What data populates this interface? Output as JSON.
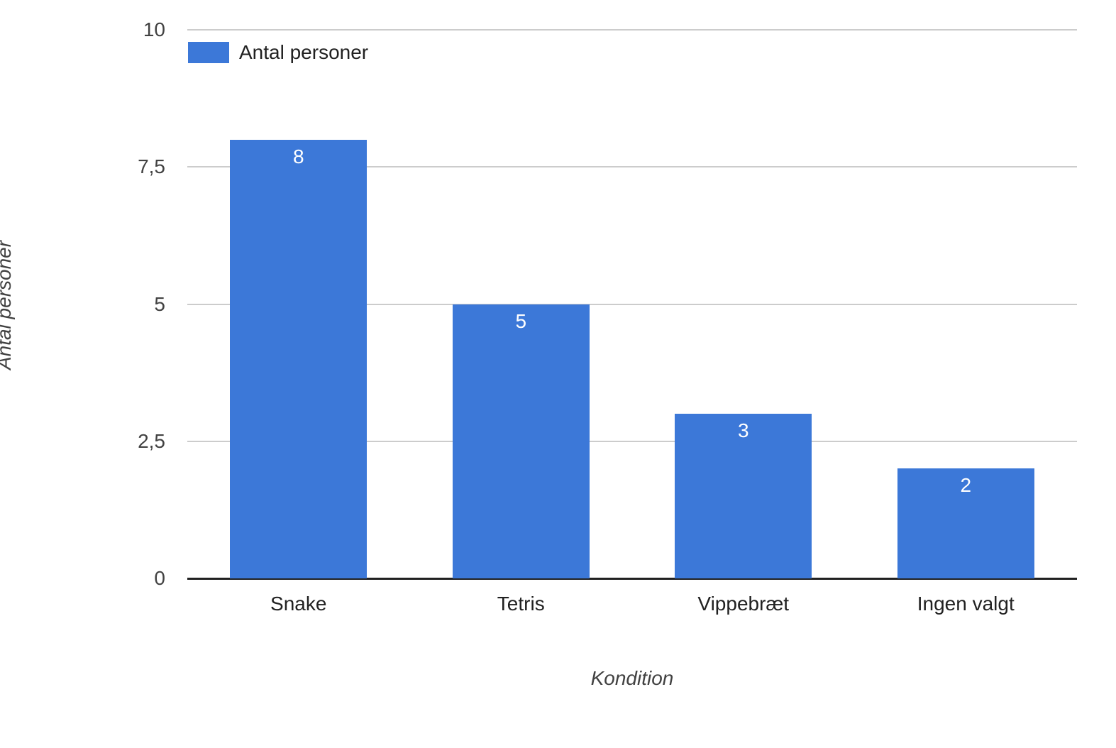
{
  "chart_data": {
    "type": "bar",
    "categories": [
      "Snake",
      "Tetris",
      "Vippebræt",
      "Ingen valgt"
    ],
    "series": [
      {
        "name": "Antal personer",
        "values": [
          8,
          5,
          3,
          2
        ]
      }
    ],
    "bar_value_labels": [
      "8",
      "5",
      "3",
      "2"
    ],
    "title": "",
    "xlabel": "Kondition",
    "ylabel": "Antal personer",
    "ylim": [
      0,
      10
    ],
    "yticks": [
      {
        "value": 0,
        "label": "0"
      },
      {
        "value": 2.5,
        "label": "2,5"
      },
      {
        "value": 5,
        "label": "5"
      },
      {
        "value": 7.5,
        "label": "7,5"
      },
      {
        "value": 10,
        "label": "10"
      }
    ],
    "grid": true,
    "legend_position": "top-left",
    "colors": {
      "bar": "#3c78d8",
      "gridline": "#cccccc",
      "axis_line": "#212121",
      "tick_text": "#424242",
      "category_text": "#212121",
      "bar_label_text": "#ffffff",
      "background": "#ffffff"
    }
  },
  "legend": {
    "label": "Antal personer"
  }
}
